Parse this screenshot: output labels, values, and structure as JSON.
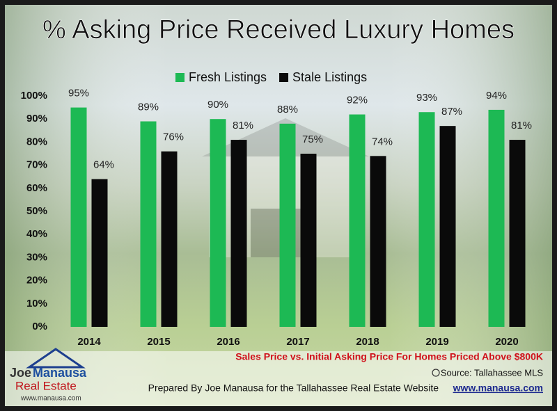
{
  "chart_data": {
    "type": "bar",
    "title": "% Asking Price Received Luxury Homes",
    "subtitle": "Sales Price vs. Initial Asking Price For Homes Priced Above $800K",
    "source": "Source: Tallahassee MLS",
    "credit": "Prepared By Joe Manausa for the Tallahassee Real Estate Website",
    "credit_url": "www.manausa.com",
    "categories": [
      "2014",
      "2015",
      "2016",
      "2017",
      "2018",
      "2019",
      "2020"
    ],
    "series": [
      {
        "name": "Fresh Listings",
        "color": "#1db954",
        "values": [
          95,
          89,
          90,
          88,
          92,
          93,
          94
        ],
        "value_labels": [
          "95%",
          "89%",
          "90%",
          "88%",
          "92%",
          "93%",
          "94%"
        ]
      },
      {
        "name": "Stale Listings",
        "color": "#0a0a0a",
        "values": [
          64,
          76,
          81,
          75,
          74,
          87,
          81
        ],
        "value_labels": [
          "64%",
          "76%",
          "81%",
          "75%",
          "74%",
          "87%",
          "81%"
        ]
      }
    ],
    "ylim": [
      0,
      100
    ],
    "yticks": [
      {
        "value": 0,
        "label": "0%"
      },
      {
        "value": 10,
        "label": "10%"
      },
      {
        "value": 20,
        "label": "20%"
      },
      {
        "value": 30,
        "label": "30%"
      },
      {
        "value": 40,
        "label": "40%"
      },
      {
        "value": 50,
        "label": "50%"
      },
      {
        "value": 60,
        "label": "60%"
      },
      {
        "value": 70,
        "label": "70%"
      },
      {
        "value": 80,
        "label": "80%"
      },
      {
        "value": 90,
        "label": "90%"
      },
      {
        "value": 100,
        "label": "100%"
      }
    ],
    "grid": false,
    "legend": "top"
  },
  "logo": {
    "first": "Joe",
    "last": "Manausa",
    "line2": "Real Estate",
    "url": "www.manausa.com"
  }
}
